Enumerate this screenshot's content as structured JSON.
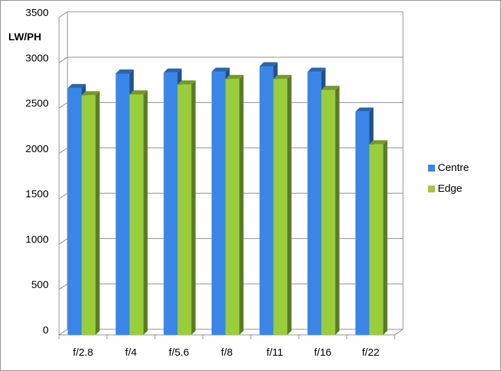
{
  "chart_data": {
    "type": "bar3d",
    "y_axis_label": "LW/PH",
    "categories": [
      "f/2.8",
      "f/4",
      "f/5.6",
      "f/8",
      "f/11",
      "f/16",
      "f/22"
    ],
    "series": [
      {
        "name": "Centre",
        "color": "#3a86e8",
        "values": [
          2720,
          2880,
          2890,
          2900,
          2960,
          2900,
          2460
        ]
      },
      {
        "name": "Edge",
        "color": "#9acd3c",
        "values": [
          2640,
          2650,
          2760,
          2820,
          2820,
          2700,
          2100
        ]
      }
    ],
    "ylim": [
      0,
      3500
    ],
    "yticks": [
      0,
      500,
      1000,
      1500,
      2000,
      2500,
      3000,
      3500
    ],
    "grid": true,
    "legend": "right"
  }
}
